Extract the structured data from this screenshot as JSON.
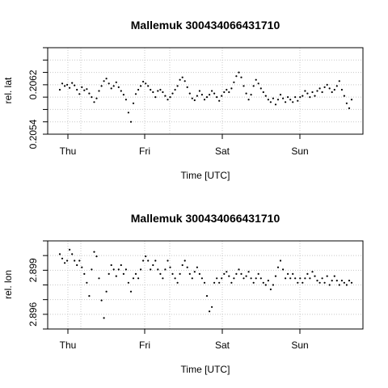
{
  "chart_data": [
    {
      "type": "scatter",
      "title": "Mallemuk 300434066431710",
      "xlabel": "Time [UTC]",
      "ylabel": "rel. lat",
      "x_ticks": [
        "Thu",
        "Fri",
        "Sat",
        "Sun"
      ],
      "y_ticks": [
        "0.2054",
        "0.2062"
      ],
      "ylim": [
        0.2054,
        0.2068
      ],
      "grid": true,
      "series": [
        {
          "values": [
            [
              0.0,
              0.20612
            ],
            [
              0.6,
              0.20622
            ],
            [
              1.2,
              0.20618
            ],
            [
              1.8,
              0.2062
            ],
            [
              2.4,
              0.20615
            ],
            [
              3.0,
              0.20623
            ],
            [
              3.6,
              0.20619
            ],
            [
              4.2,
              0.20612
            ],
            [
              4.8,
              0.20605
            ],
            [
              5.4,
              0.20616
            ],
            [
              6.0,
              0.20611
            ],
            [
              6.6,
              0.20613
            ],
            [
              7.2,
              0.20606
            ],
            [
              7.8,
              0.206
            ],
            [
              8.4,
              0.20592
            ],
            [
              9.0,
              0.20598
            ],
            [
              9.6,
              0.2061
            ],
            [
              10.2,
              0.20618
            ],
            [
              10.8,
              0.20626
            ],
            [
              11.4,
              0.2063
            ],
            [
              12.0,
              0.20622
            ],
            [
              12.6,
              0.20614
            ],
            [
              13.2,
              0.20618
            ],
            [
              13.8,
              0.20624
            ],
            [
              14.4,
              0.20616
            ],
            [
              15.0,
              0.2061
            ],
            [
              15.6,
              0.20604
            ],
            [
              16.2,
              0.20596
            ],
            [
              16.8,
              0.20575
            ],
            [
              17.4,
              0.2056
            ],
            [
              18.0,
              0.2059
            ],
            [
              18.6,
              0.20605
            ],
            [
              19.2,
              0.20612
            ],
            [
              19.8,
              0.20618
            ],
            [
              20.4,
              0.20625
            ],
            [
              21.0,
              0.20622
            ],
            [
              21.6,
              0.20618
            ],
            [
              22.2,
              0.20612
            ],
            [
              22.8,
              0.20608
            ],
            [
              23.4,
              0.206
            ],
            [
              24.0,
              0.2061
            ],
            [
              24.6,
              0.20612
            ],
            [
              25.2,
              0.20608
            ],
            [
              25.8,
              0.20602
            ],
            [
              26.4,
              0.20596
            ],
            [
              27.0,
              0.206
            ],
            [
              27.6,
              0.20606
            ],
            [
              28.2,
              0.20612
            ],
            [
              28.8,
              0.20618
            ],
            [
              29.4,
              0.20628
            ],
            [
              30.0,
              0.20632
            ],
            [
              30.6,
              0.20626
            ],
            [
              31.2,
              0.20616
            ],
            [
              31.8,
              0.20606
            ],
            [
              32.4,
              0.20598
            ],
            [
              33.0,
              0.20595
            ],
            [
              33.6,
              0.20602
            ],
            [
              34.2,
              0.2061
            ],
            [
              34.8,
              0.20604
            ],
            [
              35.4,
              0.20596
            ],
            [
              36.0,
              0.206
            ],
            [
              36.6,
              0.20604
            ],
            [
              37.2,
              0.2061
            ],
            [
              37.8,
              0.20606
            ],
            [
              38.4,
              0.206
            ],
            [
              39.0,
              0.20594
            ],
            [
              39.6,
              0.20602
            ],
            [
              40.2,
              0.20608
            ],
            [
              40.8,
              0.20612
            ],
            [
              41.4,
              0.20608
            ],
            [
              42.0,
              0.20614
            ],
            [
              42.6,
              0.20624
            ],
            [
              43.2,
              0.20634
            ],
            [
              43.8,
              0.2064
            ],
            [
              44.4,
              0.20632
            ],
            [
              45.0,
              0.20618
            ],
            [
              45.6,
              0.20606
            ],
            [
              46.2,
              0.20596
            ],
            [
              46.8,
              0.20604
            ],
            [
              47.4,
              0.20618
            ],
            [
              48.0,
              0.20628
            ],
            [
              48.6,
              0.20622
            ],
            [
              49.2,
              0.20614
            ],
            [
              49.8,
              0.20608
            ],
            [
              50.4,
              0.20602
            ],
            [
              51.0,
              0.20596
            ],
            [
              51.6,
              0.20592
            ],
            [
              52.2,
              0.20598
            ],
            [
              52.8,
              0.20588
            ],
            [
              53.4,
              0.20596
            ],
            [
              54.0,
              0.20604
            ],
            [
              54.6,
              0.20598
            ],
            [
              55.2,
              0.20592
            ],
            [
              55.8,
              0.206
            ],
            [
              56.4,
              0.20596
            ],
            [
              57.0,
              0.20592
            ],
            [
              57.6,
              0.206
            ],
            [
              58.2,
              0.20594
            ],
            [
              58.8,
              0.206
            ],
            [
              59.4,
              0.20602
            ],
            [
              60.0,
              0.2061
            ],
            [
              60.6,
              0.20606
            ],
            [
              61.2,
              0.206
            ],
            [
              61.8,
              0.20608
            ],
            [
              62.4,
              0.20602
            ],
            [
              63.0,
              0.2061
            ],
            [
              63.6,
              0.20614
            ],
            [
              64.2,
              0.20608
            ],
            [
              64.8,
              0.20616
            ],
            [
              65.4,
              0.2062
            ],
            [
              66.0,
              0.20614
            ],
            [
              66.6,
              0.20608
            ],
            [
              67.2,
              0.20612
            ],
            [
              67.8,
              0.20618
            ],
            [
              68.4,
              0.20626
            ],
            [
              69.0,
              0.20612
            ],
            [
              69.6,
              0.20602
            ],
            [
              70.2,
              0.2059
            ],
            [
              70.8,
              0.20582
            ],
            [
              71.4,
              0.20596
            ]
          ]
        }
      ]
    },
    {
      "type": "scatter",
      "title": "Mallemuk 300434066431710",
      "xlabel": "Time [UTC]",
      "ylabel": "rel. lon",
      "x_ticks": [
        "Thu",
        "Fri",
        "Sat",
        "Sun"
      ],
      "y_ticks": [
        "2.896",
        "2.899"
      ],
      "ylim": [
        2.8955,
        2.8995
      ],
      "grid": true,
      "series": [
        {
          "values": [
            [
              0.0,
              2.8989
            ],
            [
              0.6,
              2.8987
            ],
            [
              1.2,
              2.8985
            ],
            [
              1.8,
              2.8986
            ],
            [
              2.4,
              2.8991
            ],
            [
              3.0,
              2.8989
            ],
            [
              3.6,
              2.8986
            ],
            [
              4.2,
              2.8984
            ],
            [
              4.8,
              2.8986
            ],
            [
              5.4,
              2.8983
            ],
            [
              6.0,
              2.898
            ],
            [
              6.6,
              2.8976
            ],
            [
              7.2,
              2.897
            ],
            [
              7.8,
              2.8982
            ],
            [
              8.4,
              2.899
            ],
            [
              9.0,
              2.8988
            ],
            [
              9.6,
              2.8978
            ],
            [
              10.2,
              2.8968
            ],
            [
              10.8,
              2.896
            ],
            [
              11.4,
              2.8972
            ],
            [
              12.0,
              2.898
            ],
            [
              12.6,
              2.8984
            ],
            [
              13.2,
              2.8982
            ],
            [
              13.8,
              2.8979
            ],
            [
              14.4,
              2.8982
            ],
            [
              15.0,
              2.8984
            ],
            [
              15.6,
              2.898
            ],
            [
              16.2,
              2.8982
            ],
            [
              16.8,
              2.8976
            ],
            [
              17.4,
              2.8972
            ],
            [
              18.0,
              2.8978
            ],
            [
              18.6,
              2.898
            ],
            [
              19.2,
              2.8978
            ],
            [
              19.8,
              2.8982
            ],
            [
              20.4,
              2.8986
            ],
            [
              21.0,
              2.8988
            ],
            [
              21.6,
              2.8986
            ],
            [
              22.2,
              2.8982
            ],
            [
              22.8,
              2.8984
            ],
            [
              23.4,
              2.8986
            ],
            [
              24.0,
              2.8982
            ],
            [
              24.6,
              2.898
            ],
            [
              25.2,
              2.8978
            ],
            [
              25.8,
              2.8982
            ],
            [
              26.4,
              2.8986
            ],
            [
              27.0,
              2.8983
            ],
            [
              27.6,
              2.898
            ],
            [
              28.2,
              2.8978
            ],
            [
              28.8,
              2.8976
            ],
            [
              29.4,
              2.898
            ],
            [
              30.0,
              2.8984
            ],
            [
              30.6,
              2.8986
            ],
            [
              31.2,
              2.8983
            ],
            [
              31.8,
              2.898
            ],
            [
              32.4,
              2.8978
            ],
            [
              33.0,
              2.8981
            ],
            [
              33.6,
              2.8983
            ],
            [
              34.2,
              2.898
            ],
            [
              34.8,
              2.8978
            ],
            [
              35.4,
              2.8976
            ],
            [
              36.0,
              2.897
            ],
            [
              36.6,
              2.8963
            ],
            [
              37.2,
              2.8965
            ],
            [
              37.8,
              2.8976
            ],
            [
              38.4,
              2.8978
            ],
            [
              39.0,
              2.8976
            ],
            [
              39.6,
              2.8978
            ],
            [
              40.2,
              2.898
            ],
            [
              40.8,
              2.8981
            ],
            [
              41.4,
              2.8979
            ],
            [
              42.0,
              2.8976
            ],
            [
              42.6,
              2.8978
            ],
            [
              43.2,
              2.898
            ],
            [
              43.8,
              2.8982
            ],
            [
              44.4,
              2.898
            ],
            [
              45.0,
              2.8978
            ],
            [
              45.6,
              2.8979
            ],
            [
              46.2,
              2.8981
            ],
            [
              46.8,
              2.8978
            ],
            [
              47.4,
              2.8976
            ],
            [
              48.0,
              2.8978
            ],
            [
              48.6,
              2.898
            ],
            [
              49.2,
              2.8978
            ],
            [
              49.8,
              2.8976
            ],
            [
              50.4,
              2.8975
            ],
            [
              51.0,
              2.8977
            ],
            [
              51.6,
              2.8973
            ],
            [
              52.2,
              2.8975
            ],
            [
              52.8,
              2.8979
            ],
            [
              53.4,
              2.8983
            ],
            [
              54.0,
              2.8986
            ],
            [
              54.6,
              2.8982
            ],
            [
              55.2,
              2.8978
            ],
            [
              55.8,
              2.898
            ],
            [
              56.4,
              2.8978
            ],
            [
              57.0,
              2.898
            ],
            [
              57.6,
              2.8978
            ],
            [
              58.2,
              2.8976
            ],
            [
              58.8,
              2.8978
            ],
            [
              59.4,
              2.8976
            ],
            [
              60.0,
              2.8978
            ],
            [
              60.6,
              2.898
            ],
            [
              61.2,
              2.8978
            ],
            [
              61.8,
              2.8981
            ],
            [
              62.4,
              2.8979
            ],
            [
              63.0,
              2.8977
            ],
            [
              63.6,
              2.8976
            ],
            [
              64.2,
              2.8978
            ],
            [
              64.8,
              2.8976
            ],
            [
              65.4,
              2.8979
            ],
            [
              66.0,
              2.8975
            ],
            [
              66.6,
              2.8977
            ],
            [
              67.2,
              2.8979
            ],
            [
              67.8,
              2.8977
            ],
            [
              68.4,
              2.8975
            ],
            [
              69.0,
              2.8977
            ],
            [
              69.6,
              2.8976
            ],
            [
              70.2,
              2.8975
            ],
            [
              70.8,
              2.8977
            ],
            [
              71.4,
              2.8976
            ]
          ]
        }
      ]
    }
  ]
}
